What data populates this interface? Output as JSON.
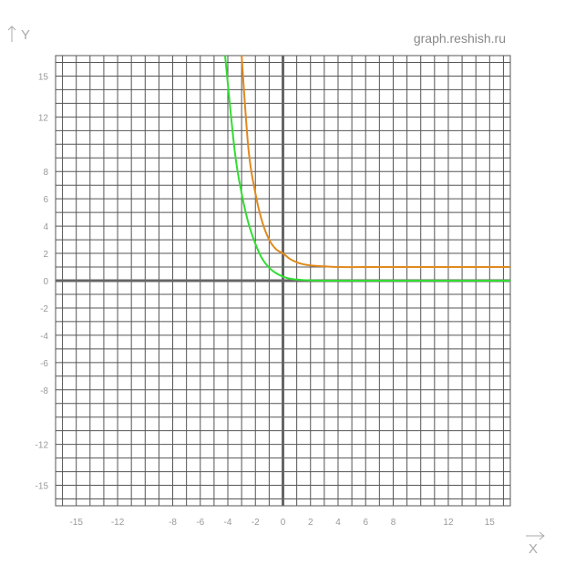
{
  "watermark": "graph.reshish.ru",
  "chart_data": {
    "type": "line",
    "xlabel": "X",
    "ylabel": "Y",
    "xlim": [
      -16.5,
      16.5
    ],
    "ylim": [
      -16.5,
      16.5
    ],
    "grid": true,
    "x_tick_labels": [
      -15,
      -12,
      -8,
      -6,
      -4,
      -2,
      0,
      2,
      4,
      6,
      8,
      12,
      15
    ],
    "y_tick_labels": [
      15,
      12,
      8,
      6,
      4,
      2,
      0,
      -2,
      -4,
      -6,
      -8,
      -12,
      -15
    ],
    "series": [
      {
        "color": "#e08a1e",
        "x": [
          -3,
          -2.5,
          -2,
          -1.5,
          -1,
          -0.5,
          0,
          0.5,
          1,
          1.5,
          2,
          3,
          4,
          6,
          10,
          16.5
        ],
        "y": [
          16.5,
          9.6,
          6.4,
          4.3,
          3.0,
          2.3,
          2.0,
          1.6,
          1.35,
          1.2,
          1.12,
          1.05,
          1.0,
          1.0,
          1.0,
          1.0
        ]
      },
      {
        "color": "#33dd33",
        "x": [
          -4.2,
          -3.5,
          -3,
          -2.5,
          -2,
          -1.5,
          -1,
          -0.5,
          0,
          0.5,
          1,
          1.5,
          2,
          3,
          5,
          16.5
        ],
        "y": [
          16.5,
          9.5,
          6.4,
          4.2,
          2.7,
          1.6,
          0.95,
          0.55,
          0.3,
          0.15,
          0.08,
          0.04,
          0.02,
          0.0,
          0.0,
          0.0
        ]
      }
    ]
  }
}
